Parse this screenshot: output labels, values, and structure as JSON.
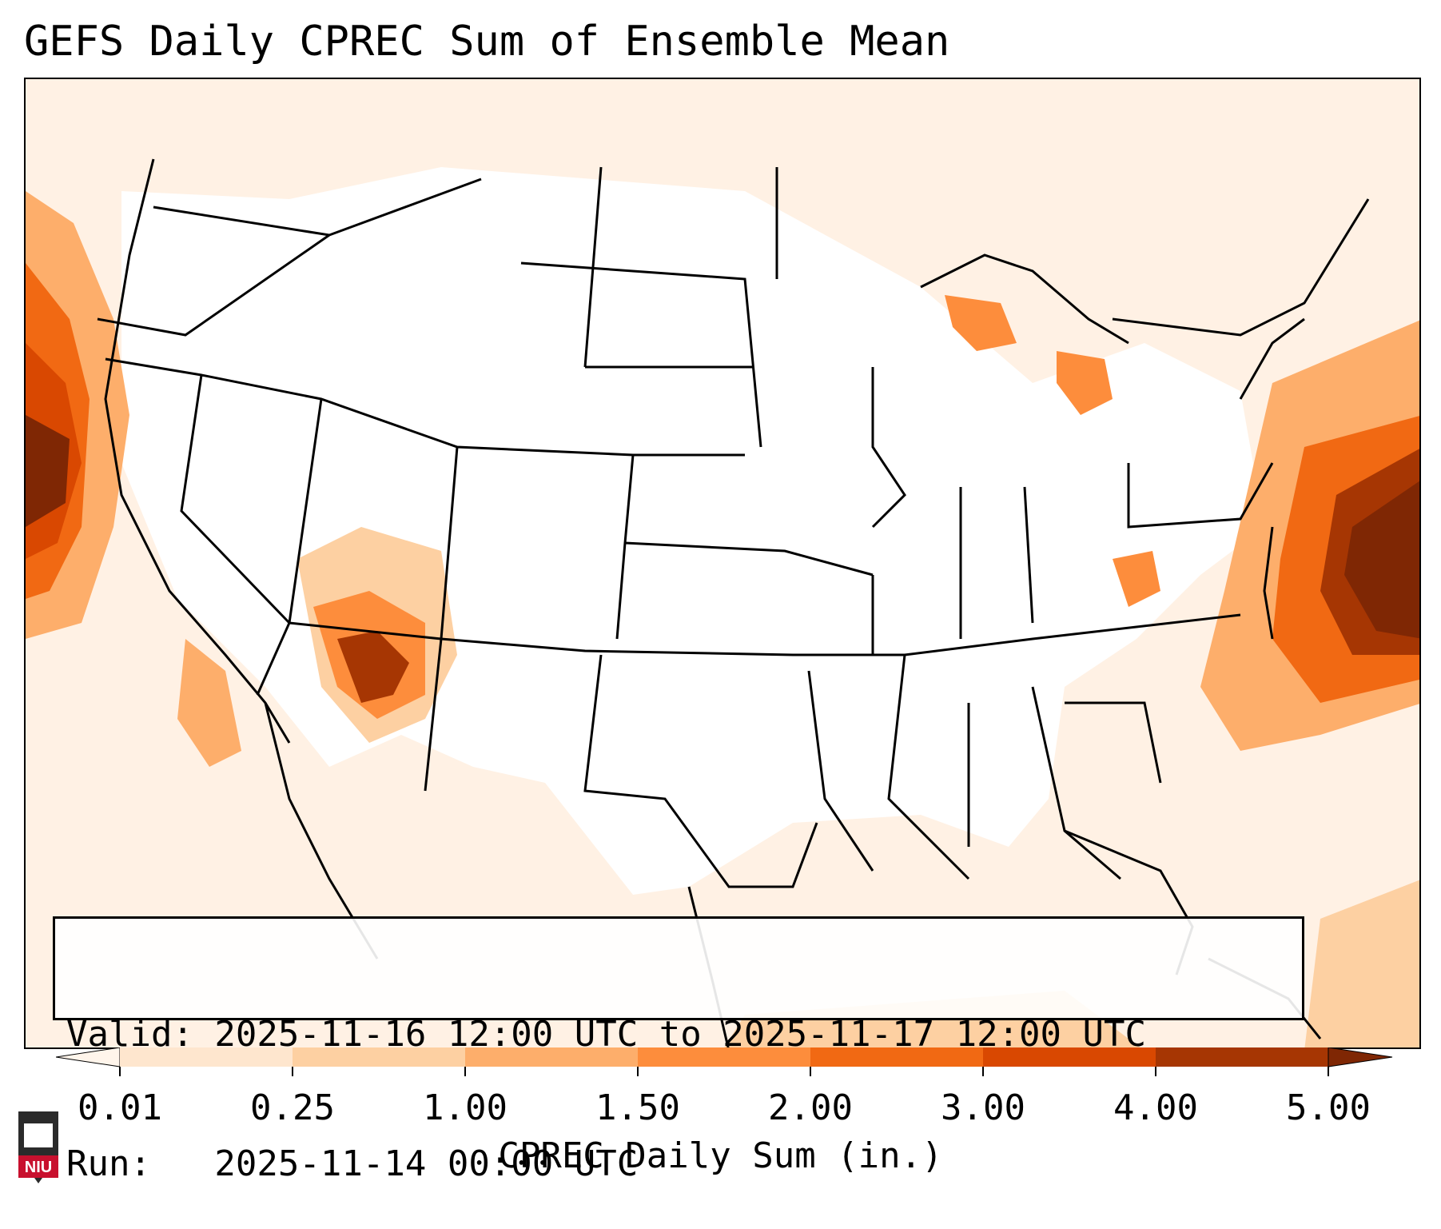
{
  "title": "GEFS Daily CPREC Sum of Ensemble Mean",
  "info": {
    "valid": "Valid: 2025-11-16 12:00 UTC to 2025-11-17 12:00 UTC",
    "run": "Run:   2025-11-14 00:00 UTC"
  },
  "colorbar": {
    "label": "CPREC Daily Sum (in.)",
    "ticks": [
      "0.01",
      "0.25",
      "1.00",
      "1.50",
      "2.00",
      "3.00",
      "4.00",
      "5.00"
    ],
    "colors": [
      "#fff5eb",
      "#fee6ce",
      "#fdd0a2",
      "#fdae6b",
      "#fd8d3c",
      "#f16913",
      "#d94801",
      "#a63603",
      "#7f2704"
    ]
  },
  "logo": {
    "text": "NIU"
  }
}
